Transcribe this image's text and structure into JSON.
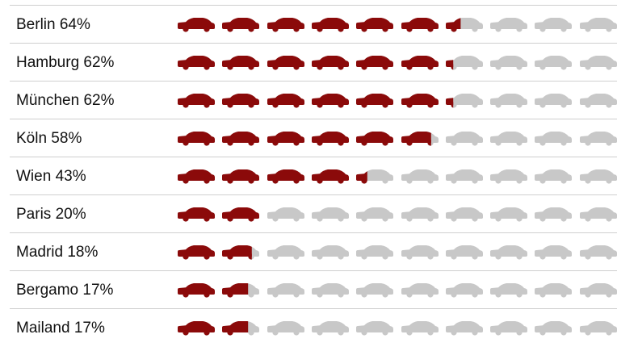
{
  "chart_data": {
    "type": "pictogram",
    "unit": "%",
    "icon": "car-icon",
    "icons_per_row": 10,
    "percent_per_icon": 10,
    "colors": {
      "filled": "#8b0a0a",
      "empty": "#c8c8c8",
      "divider": "#cfcfcf"
    },
    "rows": [
      {
        "label": "Berlin 64%",
        "category": "Berlin",
        "value": 64
      },
      {
        "label": "Hamburg 62%",
        "category": "Hamburg",
        "value": 62
      },
      {
        "label": "München 62%",
        "category": "München",
        "value": 62
      },
      {
        "label": "Köln 58%",
        "category": "Köln",
        "value": 58
      },
      {
        "label": "Wien 43%",
        "category": "Wien",
        "value": 43
      },
      {
        "label": "Paris 20%",
        "category": "Paris",
        "value": 20
      },
      {
        "label": "Madrid 18%",
        "category": "Madrid",
        "value": 18
      },
      {
        "label": "Bergamo 17%",
        "category": "Bergamo",
        "value": 17
      },
      {
        "label": "Mailand 17%",
        "category": "Mailand",
        "value": 17
      }
    ]
  }
}
